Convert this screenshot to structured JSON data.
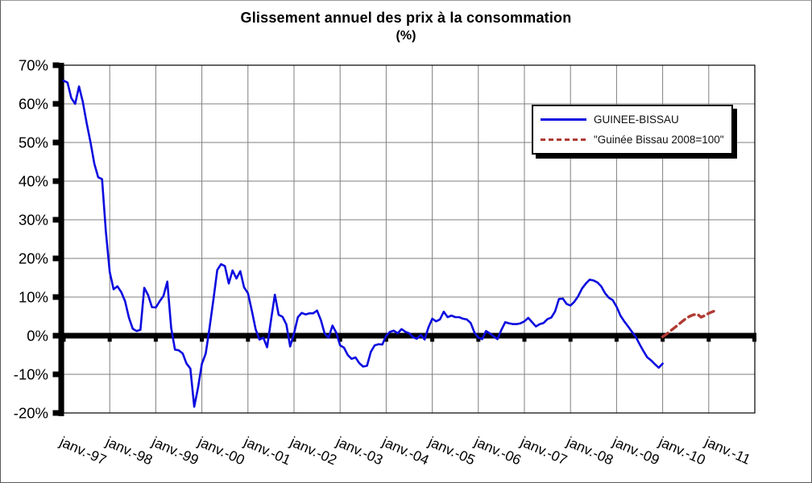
{
  "chart_data": {
    "type": "line",
    "title": "Glissement annuel des prix à la consommation",
    "subtitle": "(%)",
    "xlabel": "",
    "ylabel": "",
    "ylim": [
      -20,
      70
    ],
    "y_tick_step": 10,
    "grid": true,
    "legend_position": "inside-top-right",
    "y_ticks": [
      {
        "value": 70,
        "label": "70%"
      },
      {
        "value": 60,
        "label": "60%"
      },
      {
        "value": 50,
        "label": "50%"
      },
      {
        "value": 40,
        "label": "40%"
      },
      {
        "value": 30,
        "label": "30%"
      },
      {
        "value": 20,
        "label": "20%"
      },
      {
        "value": 10,
        "label": "10%"
      },
      {
        "value": 0,
        "label": "0%"
      },
      {
        "value": -10,
        "label": "-10%"
      },
      {
        "value": -20,
        "label": "-20%"
      }
    ],
    "x_tick_labels": [
      "janv.-97",
      "janv.-98",
      "janv.-99",
      "janv.-00",
      "janv.-01",
      "janv.-02",
      "janv.-03",
      "janv.-04",
      "janv.-05",
      "janv.-06",
      "janv.-07",
      "janv.-08",
      "janv.-09",
      "janv.-10",
      "janv.-11"
    ],
    "x_frequency": "monthly",
    "series": [
      {
        "name": "GUINEE-BISSAU",
        "color": "#0b0bdf",
        "style": "solid",
        "start": "janv.-97",
        "start_month_index": 0,
        "values": [
          66,
          65.5,
          61.5,
          60,
          64.5,
          60.5,
          55,
          50,
          44.5,
          41,
          40.5,
          27,
          16.5,
          12,
          12.8,
          11.3,
          8.9,
          4.7,
          1.8,
          1.2,
          1.5,
          12.4,
          10.5,
          7.4,
          7.3,
          8.9,
          10.3,
          14,
          2,
          -3.6,
          -3.8,
          -4.6,
          -7.2,
          -8.5,
          -18.4,
          -13.5,
          -7.3,
          -4.6,
          2,
          9.3,
          17,
          18.5,
          18,
          13.5,
          16.9,
          14.8,
          16.7,
          12.5,
          11,
          6.5,
          1.7,
          -1,
          -0.5,
          -3,
          4,
          10.6,
          5.4,
          4.9,
          2.9,
          -2.8,
          0.6,
          4.8,
          5.9,
          5.5,
          5.8,
          5.8,
          6.5,
          4,
          0.5,
          -0.5,
          2.6,
          0.8,
          -2.5,
          -3.1,
          -5,
          -6,
          -5.6,
          -7.1,
          -8,
          -7.8,
          -4.2,
          -2.5,
          -2.2,
          -2.3,
          0,
          1,
          1.3,
          0.6,
          1.7,
          1,
          0.6,
          -0.4,
          -0.8,
          0.2,
          -1,
          2.1,
          4.4,
          3.7,
          4.2,
          6.2,
          4.8,
          5.2,
          4.8,
          4.8,
          4.4,
          4.2,
          3.3,
          0.8,
          -0.5,
          -0.9,
          1.2,
          0.6,
          -0.2,
          -0.9,
          1.5,
          3.5,
          3.2,
          3,
          3,
          3.2,
          3.7,
          4.6,
          3.5,
          2.4,
          3,
          3.3,
          4.3,
          4.7,
          6.3,
          9.5,
          9.6,
          8.2,
          7.8,
          8.8,
          10.2,
          12.2,
          13.5,
          14.5,
          14.3,
          13.8,
          12.8,
          11,
          9.8,
          9.2,
          7.5,
          5.2,
          3.7,
          2.4,
          1,
          -0.3,
          -2.2,
          -4,
          -5.6,
          -6.4,
          -7.4,
          -8.3,
          -7.2
        ]
      },
      {
        "name": "\"Guinée Bissau 2008=100\"",
        "color": "#b03a33",
        "style": "dashed",
        "start": "janv.-10",
        "start_month_index": 156,
        "values": [
          -0.3,
          0.4,
          1.2,
          2,
          2.8,
          3.6,
          4.4,
          5,
          5.4,
          5.6,
          4.8,
          5.2,
          5.8,
          6.2,
          6.6
        ]
      }
    ]
  },
  "legend": {
    "items": [
      {
        "label": "GUINEE-BISSAU"
      },
      {
        "label": "\"Guinée Bissau 2008=100\""
      }
    ]
  }
}
